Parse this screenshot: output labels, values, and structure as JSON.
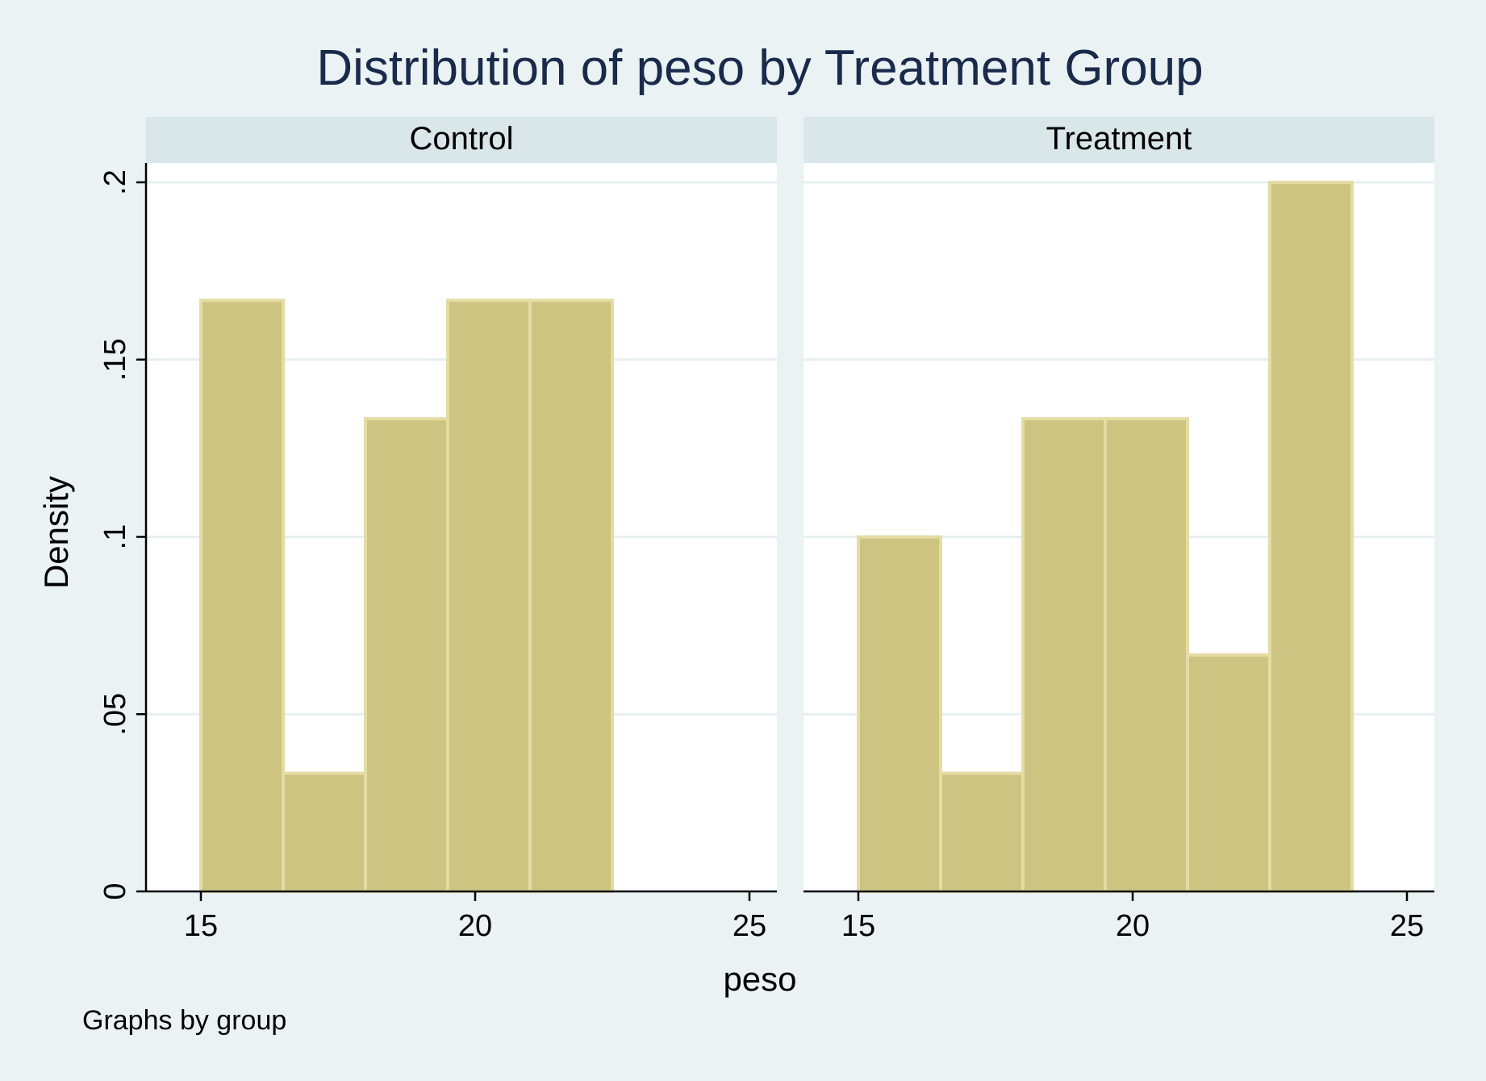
{
  "chart_data": {
    "type": "bar",
    "title": "Distribution of peso by Treatment Group",
    "xlabel": "peso",
    "ylabel": "Density",
    "note": "Graphs by group",
    "xlim": [
      14,
      25.5
    ],
    "ylim": [
      0,
      0.2
    ],
    "xticks": [
      15,
      20,
      25
    ],
    "xtick_labels": [
      "15",
      "20",
      "25"
    ],
    "yticks": [
      0,
      0.05,
      0.1,
      0.15,
      0.2
    ],
    "ytick_labels": [
      "0",
      ".05",
      ".1",
      ".15",
      ".2"
    ],
    "grid": true,
    "bar_color": "#cdc481",
    "bar_edge_color": "#e4dca4",
    "panels": [
      {
        "name": "Control",
        "bins": [
          {
            "x0": 15.0,
            "x1": 16.5,
            "density": 0.1667
          },
          {
            "x0": 16.5,
            "x1": 18.0,
            "density": 0.0333
          },
          {
            "x0": 18.0,
            "x1": 19.5,
            "density": 0.1333
          },
          {
            "x0": 19.5,
            "x1": 21.0,
            "density": 0.1667
          },
          {
            "x0": 21.0,
            "x1": 22.5,
            "density": 0.1667
          }
        ]
      },
      {
        "name": "Treatment",
        "bins": [
          {
            "x0": 15.0,
            "x1": 16.5,
            "density": 0.1
          },
          {
            "x0": 16.5,
            "x1": 18.0,
            "density": 0.0333
          },
          {
            "x0": 18.0,
            "x1": 19.5,
            "density": 0.1333
          },
          {
            "x0": 19.5,
            "x1": 21.0,
            "density": 0.1333
          },
          {
            "x0": 21.0,
            "x1": 22.5,
            "density": 0.0667
          },
          {
            "x0": 22.5,
            "x1": 24.0,
            "density": 0.2
          }
        ]
      }
    ]
  }
}
